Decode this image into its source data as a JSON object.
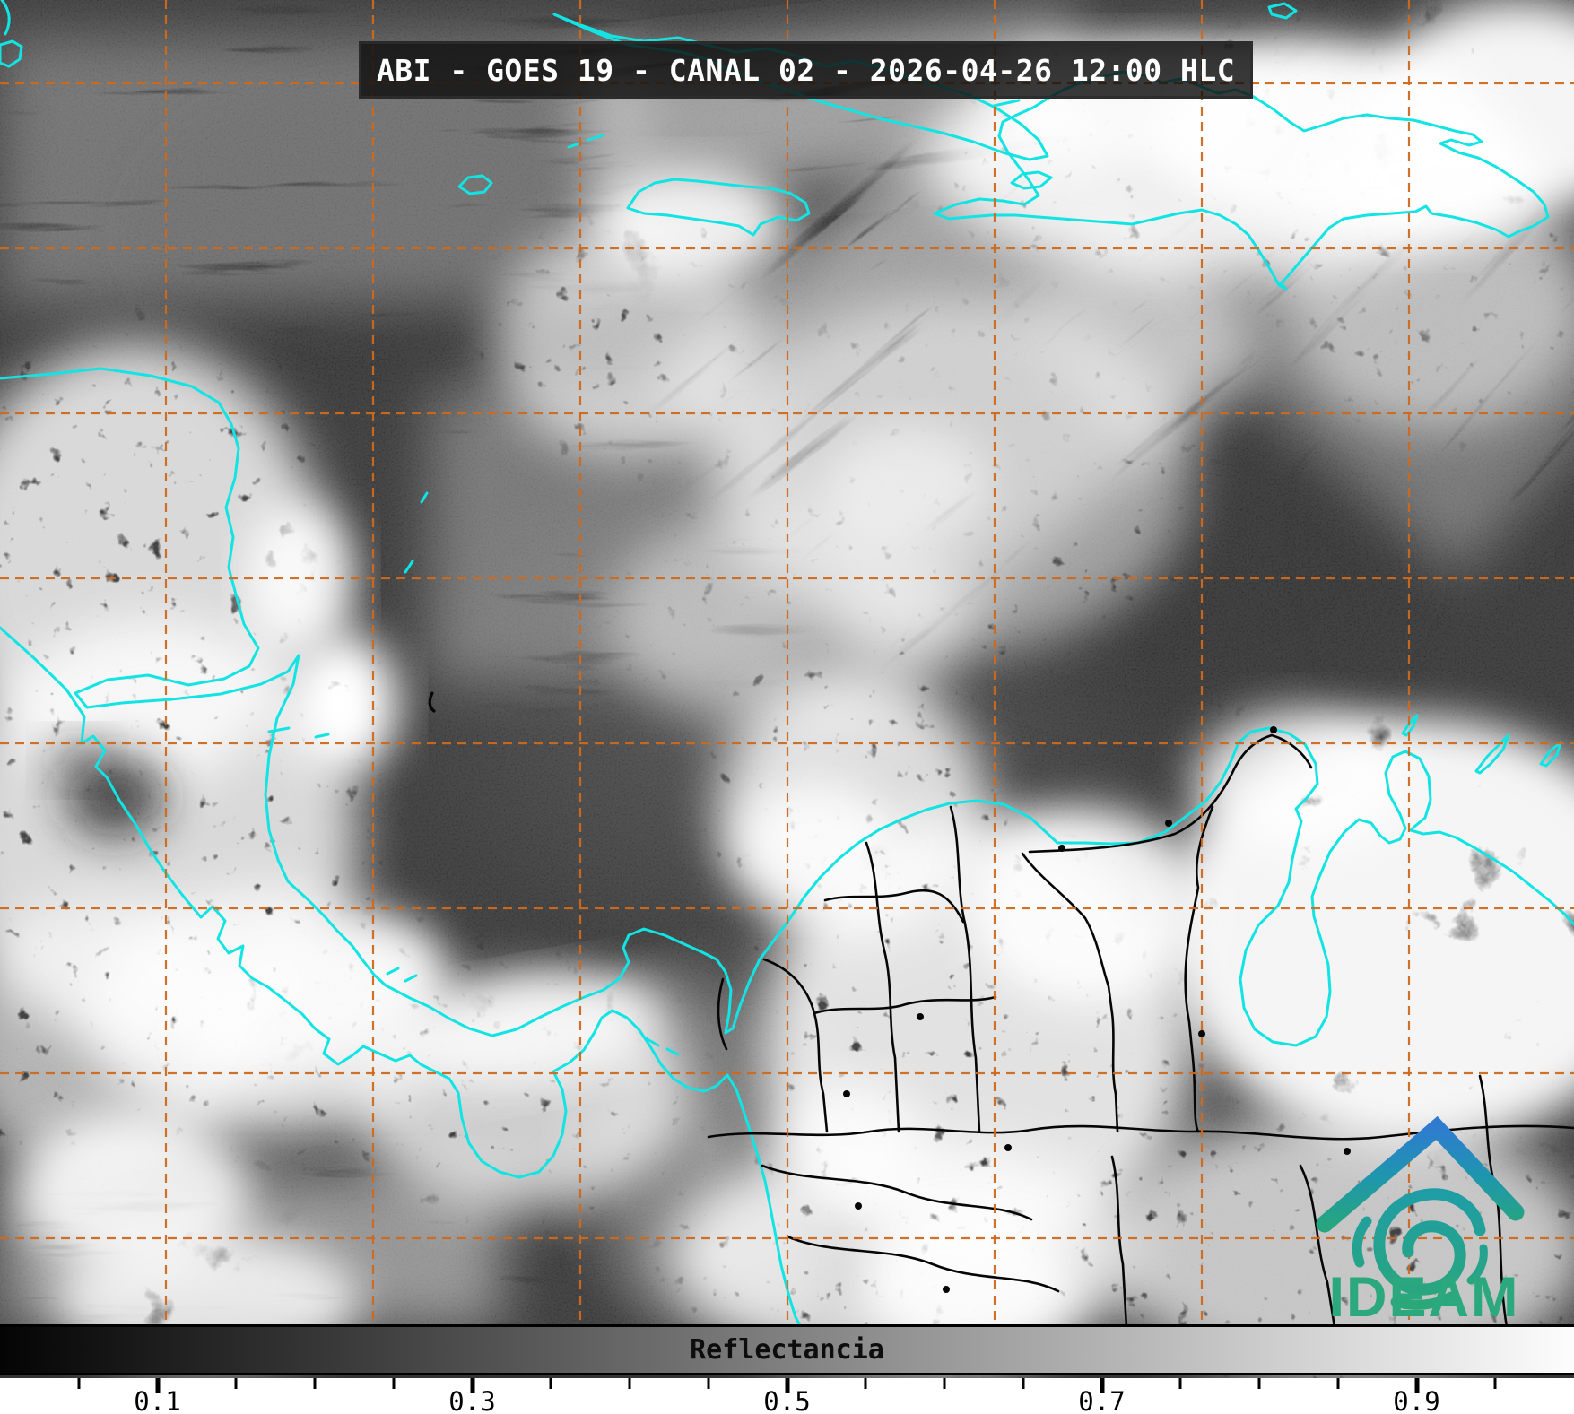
{
  "header": {
    "title": "ABI - GOES 19 - CANAL 02 - 2026-04-26 12:00 HLC"
  },
  "colorbar": {
    "label": "Reflectancia",
    "range": [
      0,
      1
    ],
    "tick_values": [
      0.05,
      0.1,
      0.15,
      0.2,
      0.25,
      0.3,
      0.35,
      0.4,
      0.45,
      0.5,
      0.55,
      0.6,
      0.65,
      0.7,
      0.75,
      0.8,
      0.85,
      0.9,
      0.95
    ],
    "major_ticks": [
      0.1,
      0.3,
      0.5,
      0.7,
      0.9
    ],
    "tick_labels": [
      "0.1",
      "0.3",
      "0.5",
      "0.7",
      "0.9"
    ],
    "gradient_start": "#000000",
    "gradient_end": "#ffffff"
  },
  "logo": {
    "text": "IDEAM",
    "color_green": "#2BA87D",
    "color_blue": "#2F7BD0",
    "color_teal": "#1E96AE"
  },
  "graticule": {
    "color": "#CE6A1F",
    "x_lines": [
      185,
      416,
      647,
      878,
      1109,
      1340,
      1571
    ],
    "y_lines": [
      93,
      277,
      461,
      645,
      829,
      1013,
      1197,
      1381
    ]
  },
  "map": {
    "coastline_color": "#12E4E4",
    "border_color": "#060606",
    "sea_color": "#343434"
  }
}
